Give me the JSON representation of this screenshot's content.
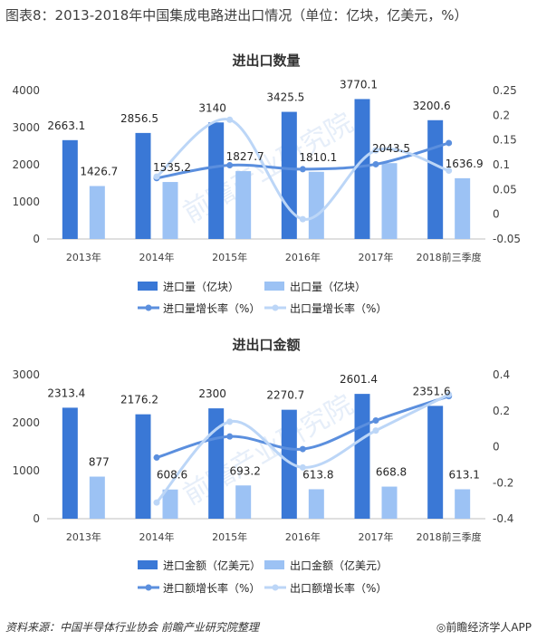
{
  "page": {
    "title": "图表8：2013-2018年中国集成电路进出口情况（单位：亿块，亿美元，%）",
    "source": "资料来源：中国半导体行业协会  前瞻产业研究院整理",
    "brand": "◎前瞻经济学人APP",
    "watermark": "前瞻产业研究院"
  },
  "colors": {
    "import_bar": "#3a78d6",
    "export_bar": "#9cc2f4",
    "import_line": "#5b8fde",
    "export_line": "#bcd6f7",
    "axis": "#bfbfbf"
  },
  "chart_data": [
    {
      "type": "bar",
      "title": "进出口数量",
      "categories": [
        "2013年",
        "2014年",
        "2015年",
        "2016年",
        "2017年",
        "2018前三季度"
      ],
      "series": [
        {
          "name": "进口量（亿块）",
          "axis": "left",
          "values": [
            2663.1,
            2856.5,
            3140,
            3425.5,
            3770.1,
            3200.6
          ],
          "labels": [
            "2663.1",
            "2856.5",
            "3140",
            "3425.5",
            "3770.1",
            "3200.6"
          ]
        },
        {
          "name": "出口量（亿块）",
          "axis": "left",
          "values": [
            1426.7,
            1535.2,
            1827.7,
            1810.1,
            2043.5,
            1636.9
          ],
          "labels": [
            "1426.7",
            "1535.2",
            "1827.7",
            "1810.1",
            "2043.5",
            "1636.9"
          ]
        },
        {
          "name": "进口量增长率（%）",
          "type": "line",
          "axis": "right",
          "values": [
            null,
            0.073,
            0.099,
            0.091,
            0.101,
            0.144
          ]
        },
        {
          "name": "出口量增长率（%）",
          "type": "line",
          "axis": "right",
          "values": [
            null,
            0.076,
            0.191,
            -0.01,
            0.129,
            0.088
          ]
        }
      ],
      "ylim": [
        0,
        4000
      ],
      "yticks": [
        "0",
        "1000",
        "2000",
        "3000",
        "4000"
      ],
      "y2lim": [
        -0.05,
        0.25
      ],
      "y2ticks": [
        "-0.05",
        "0",
        "0.05",
        "0.1",
        "0.15",
        "0.2",
        "0.25"
      ],
      "legend": "bottom"
    },
    {
      "type": "bar",
      "title": "进出口金额",
      "categories": [
        "2013年",
        "2014年",
        "2015年",
        "2016年",
        "2017年",
        "2018前三季度"
      ],
      "series": [
        {
          "name": "进口金额（亿美元）",
          "axis": "left",
          "values": [
            2313.4,
            2176.2,
            2300,
            2270.7,
            2601.4,
            2351.6
          ],
          "labels": [
            "2313.4",
            "2176.2",
            "2300",
            "2270.7",
            "2601.4",
            "2351.6"
          ]
        },
        {
          "name": "出口金额（亿美元）",
          "axis": "left",
          "values": [
            877,
            608.6,
            693.2,
            613.8,
            668.8,
            613.1
          ],
          "labels": [
            "877",
            "608.6",
            "693.2",
            "613.8",
            "668.8",
            "613.1"
          ]
        },
        {
          "name": "进口额增长率（%）",
          "type": "line",
          "axis": "right",
          "values": [
            null,
            -0.06,
            0.057,
            -0.013,
            0.146,
            0.281
          ]
        },
        {
          "name": "出口额增长率（%）",
          "type": "line",
          "axis": "right",
          "values": [
            null,
            -0.31,
            0.139,
            -0.115,
            0.09,
            0.29
          ]
        }
      ],
      "ylim": [
        0,
        3000
      ],
      "yticks": [
        "0",
        "1000",
        "2000",
        "3000"
      ],
      "y2lim": [
        -0.4,
        0.4
      ],
      "y2ticks": [
        "-0.4",
        "-0.2",
        "0",
        "0.2",
        "0.4"
      ],
      "legend": "bottom"
    }
  ]
}
